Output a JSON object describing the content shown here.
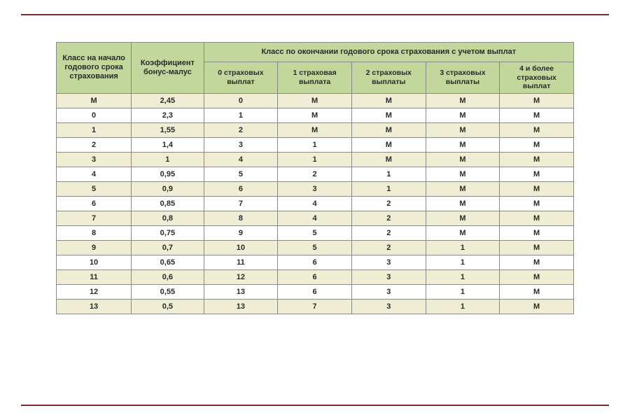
{
  "styling": {
    "header_bg": "#c3d69b",
    "row_odd_bg": "#efeed4",
    "row_even_bg": "#ffffff",
    "border_color": "#888884",
    "hr_color": "#7a2e2e",
    "text_color": "#2a2a2a",
    "font_family": "Arial",
    "header_fontsize": 11,
    "cell_fontsize": 11,
    "table_type": "table"
  },
  "headers": {
    "class_start": "Класс на начало годового срока страхования",
    "coef": "Коэффициент бонус-малус",
    "class_end": "Класс по окончании годового срока страхования с учетом выплат",
    "pay0": "0 страховых выплат",
    "pay1": "1 страховая выплата",
    "pay2": "2 страховых выплаты",
    "pay3": "3 страховых выплаты",
    "pay4": "4 и более страховых выплат"
  },
  "rows": [
    {
      "class": "М",
      "coef": "2,45",
      "p0": "0",
      "p1": "М",
      "p2": "М",
      "p3": "М",
      "p4": "М"
    },
    {
      "class": "0",
      "coef": "2,3",
      "p0": "1",
      "p1": "М",
      "p2": "М",
      "p3": "М",
      "p4": "М"
    },
    {
      "class": "1",
      "coef": "1,55",
      "p0": "2",
      "p1": "М",
      "p2": "М",
      "p3": "М",
      "p4": "М"
    },
    {
      "class": "2",
      "coef": "1,4",
      "p0": "3",
      "p1": "1",
      "p2": "М",
      "p3": "М",
      "p4": "М"
    },
    {
      "class": "3",
      "coef": "1",
      "p0": "4",
      "p1": "1",
      "p2": "М",
      "p3": "М",
      "p4": "М"
    },
    {
      "class": "4",
      "coef": "0,95",
      "p0": "5",
      "p1": "2",
      "p2": "1",
      "p3": "М",
      "p4": "М"
    },
    {
      "class": "5",
      "coef": "0,9",
      "p0": "6",
      "p1": "3",
      "p2": "1",
      "p3": "М",
      "p4": "М"
    },
    {
      "class": "6",
      "coef": "0,85",
      "p0": "7",
      "p1": "4",
      "p2": "2",
      "p3": "М",
      "p4": "М"
    },
    {
      "class": "7",
      "coef": "0,8",
      "p0": "8",
      "p1": "4",
      "p2": "2",
      "p3": "М",
      "p4": "М"
    },
    {
      "class": "8",
      "coef": "0,75",
      "p0": "9",
      "p1": "5",
      "p2": "2",
      "p3": "М",
      "p4": "М"
    },
    {
      "class": "9",
      "coef": "0,7",
      "p0": "10",
      "p1": "5",
      "p2": "2",
      "p3": "1",
      "p4": "М"
    },
    {
      "class": "10",
      "coef": "0,65",
      "p0": "11",
      "p1": "6",
      "p2": "3",
      "p3": "1",
      "p4": "М"
    },
    {
      "class": "11",
      "coef": "0,6",
      "p0": "12",
      "p1": "6",
      "p2": "3",
      "p3": "1",
      "p4": "М"
    },
    {
      "class": "12",
      "coef": "0,55",
      "p0": "13",
      "p1": "6",
      "p2": "3",
      "p3": "1",
      "p4": "М"
    },
    {
      "class": "13",
      "coef": "0,5",
      "p0": "13",
      "p1": "7",
      "p2": "3",
      "p3": "1",
      "p4": "М"
    }
  ]
}
